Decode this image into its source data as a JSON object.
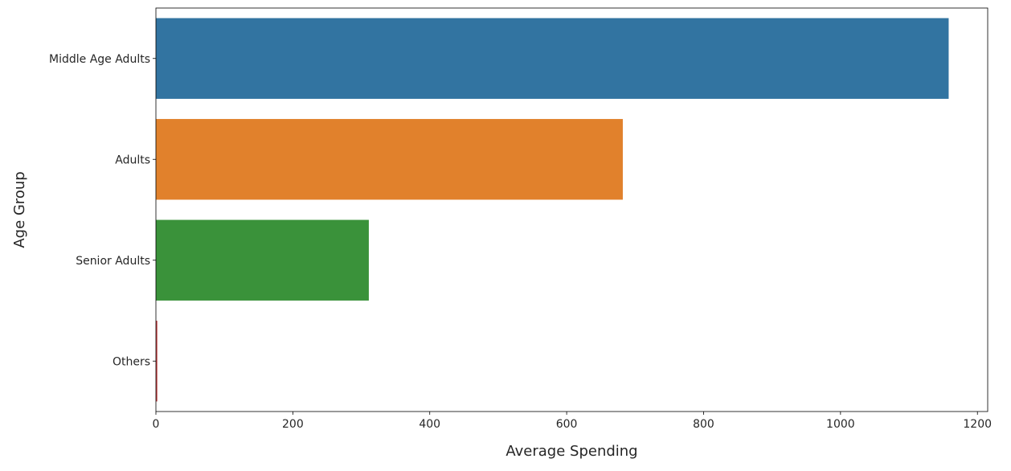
{
  "chart_data": {
    "type": "bar",
    "orientation": "horizontal",
    "title": "",
    "xlabel": "Average Spending",
    "ylabel": "Age Group",
    "categories": [
      "Middle Age Adults",
      "Adults",
      "Senior Adults",
      "Others"
    ],
    "values": [
      1158,
      682,
      311,
      2
    ],
    "colors": [
      "#3274a1",
      "#e1812c",
      "#3a923a",
      "#c03d3e"
    ],
    "xlim": [
      0,
      1215
    ],
    "xticks": [
      0,
      200,
      400,
      600,
      800,
      1000,
      1200
    ],
    "grid": false,
    "legend": "none"
  }
}
